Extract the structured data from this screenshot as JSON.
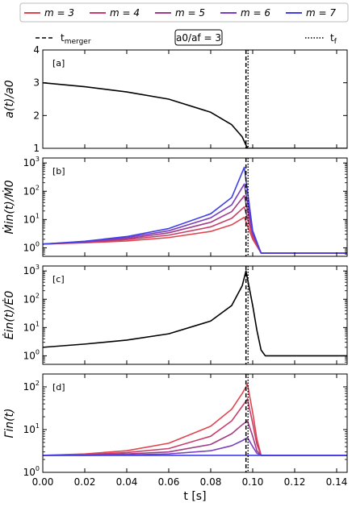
{
  "legend": {
    "entries": [
      {
        "label": "m = 3",
        "color": "#e0454f"
      },
      {
        "label": "m = 4",
        "color": "#c83e6a"
      },
      {
        "label": "m = 5",
        "color": "#a13d88"
      },
      {
        "label": "m = 6",
        "color": "#7a3ec0"
      },
      {
        "label": "m = 7",
        "color": "#3f3fe8"
      }
    ],
    "merger_label": "t_merger",
    "ratio_box": "a0/af = 3",
    "final_label": "t_f"
  },
  "chart_data": [
    {
      "type": "line",
      "panel_label": "[a]",
      "ylabel": "a(t)/a0",
      "xlim": [
        0,
        0.145
      ],
      "ylim": [
        1,
        4
      ],
      "yscale": "linear",
      "yticks": [
        "1",
        "2",
        "3",
        "4"
      ],
      "series": [
        {
          "x": [
            0,
            0.02,
            0.04,
            0.06,
            0.08,
            0.09,
            0.095,
            0.0975,
            0.145
          ],
          "y": [
            3.0,
            2.88,
            2.72,
            2.5,
            2.1,
            1.72,
            1.35,
            1.0,
            1.0
          ]
        }
      ]
    },
    {
      "type": "line",
      "panel_label": "[b]",
      "ylabel": "Ṁin(t)/Ṁ0",
      "xlim": [
        0,
        0.145
      ],
      "ylim": [
        0.5,
        1500
      ],
      "yscale": "log",
      "yticks": [
        "10^0",
        "10^1",
        "10^2",
        "10^3"
      ],
      "series": [
        {
          "name": "m = 3",
          "x": [
            0,
            0.02,
            0.04,
            0.06,
            0.08,
            0.09,
            0.096,
            0.1,
            0.104,
            0.145
          ],
          "y": [
            1.35,
            1.5,
            1.75,
            2.3,
            3.8,
            6.5,
            12,
            2.0,
            0.65,
            0.65
          ]
        },
        {
          "name": "m = 4",
          "x": [
            0,
            0.02,
            0.04,
            0.06,
            0.08,
            0.09,
            0.096,
            0.1,
            0.104,
            0.145
          ],
          "y": [
            1.35,
            1.55,
            1.95,
            2.8,
            5.5,
            11,
            28,
            2.5,
            0.65,
            0.65
          ]
        },
        {
          "name": "m = 5",
          "x": [
            0,
            0.02,
            0.04,
            0.06,
            0.08,
            0.09,
            0.096,
            0.1,
            0.104,
            0.145
          ],
          "y": [
            1.35,
            1.6,
            2.1,
            3.4,
            8,
            19,
            70,
            3.0,
            0.65,
            0.65
          ]
        },
        {
          "name": "m = 6",
          "x": [
            0,
            0.02,
            0.04,
            0.06,
            0.08,
            0.09,
            0.096,
            0.1,
            0.104,
            0.145
          ],
          "y": [
            1.35,
            1.65,
            2.3,
            4.0,
            11.5,
            33,
            180,
            3.5,
            0.65,
            0.65
          ]
        },
        {
          "name": "m = 7",
          "x": [
            0,
            0.02,
            0.04,
            0.06,
            0.08,
            0.09,
            0.096,
            0.1,
            0.104,
            0.145
          ],
          "y": [
            1.35,
            1.7,
            2.5,
            4.8,
            16,
            60,
            700,
            4.0,
            0.65,
            0.65
          ]
        }
      ]
    },
    {
      "type": "line",
      "panel_label": "[c]",
      "ylabel": "Ėin(t)/Ė0",
      "xlim": [
        0,
        0.145
      ],
      "ylim": [
        0.5,
        1500
      ],
      "yscale": "log",
      "yticks": [
        "10^0",
        "10^1",
        "10^2",
        "10^3"
      ],
      "series": [
        {
          "x": [
            0,
            0.02,
            0.04,
            0.06,
            0.08,
            0.09,
            0.095,
            0.0968,
            0.098,
            0.1,
            0.102,
            0.104,
            0.106,
            0.145
          ],
          "y": [
            2.0,
            2.6,
            3.6,
            6.0,
            17,
            60,
            300,
            1000,
            350,
            60,
            8,
            1.6,
            1.0,
            1.0
          ]
        }
      ]
    },
    {
      "type": "line",
      "panel_label": "[d]",
      "ylabel": "Γin(t)",
      "xlabel": "t [s]",
      "xlim": [
        0,
        0.145
      ],
      "ylim": [
        1,
        200
      ],
      "yscale": "log",
      "yticks": [
        "10^0",
        "10^1",
        "10^2"
      ],
      "xticks": [
        "0.00",
        "0.02",
        "0.04",
        "0.06",
        "0.08",
        "0.10",
        "0.12",
        "0.14"
      ],
      "series": [
        {
          "name": "m = 3",
          "x": [
            0,
            0.02,
            0.04,
            0.06,
            0.08,
            0.09,
            0.095,
            0.0975,
            0.1,
            0.102,
            0.104,
            0.145
          ],
          "y": [
            2.5,
            2.7,
            3.2,
            4.8,
            12,
            30,
            70,
            115,
            25,
            6,
            2.5,
            2.5
          ]
        },
        {
          "name": "m = 4",
          "x": [
            0,
            0.02,
            0.04,
            0.06,
            0.08,
            0.09,
            0.095,
            0.0975,
            0.1,
            0.102,
            0.104,
            0.145
          ],
          "y": [
            2.5,
            2.6,
            2.9,
            3.6,
            7,
            16,
            35,
            52,
            14,
            4.5,
            2.5,
            2.5
          ]
        },
        {
          "name": "m = 5",
          "x": [
            0,
            0.02,
            0.04,
            0.06,
            0.08,
            0.09,
            0.095,
            0.0975,
            0.1,
            0.102,
            0.104,
            0.145
          ],
          "y": [
            2.5,
            2.55,
            2.7,
            3.0,
            4.5,
            8,
            13,
            16,
            7,
            3.2,
            2.5,
            2.5
          ]
        },
        {
          "name": "m = 6",
          "x": [
            0,
            0.02,
            0.04,
            0.06,
            0.08,
            0.09,
            0.095,
            0.0975,
            0.1,
            0.102,
            0.104,
            0.145
          ],
          "y": [
            2.5,
            2.5,
            2.55,
            2.7,
            3.2,
            4.2,
            5.5,
            6.5,
            4.0,
            2.8,
            2.5,
            2.5
          ]
        },
        {
          "name": "m = 7",
          "x": [
            0,
            0.02,
            0.04,
            0.06,
            0.08,
            0.09,
            0.095,
            0.0975,
            0.1,
            0.102,
            0.104,
            0.145
          ],
          "y": [
            2.5,
            2.5,
            2.5,
            2.5,
            2.5,
            2.5,
            2.5,
            2.5,
            2.5,
            2.5,
            2.5,
            2.5
          ]
        }
      ]
    }
  ],
  "vlines": {
    "t_merger": 0.0968,
    "t_f": 0.0978
  }
}
